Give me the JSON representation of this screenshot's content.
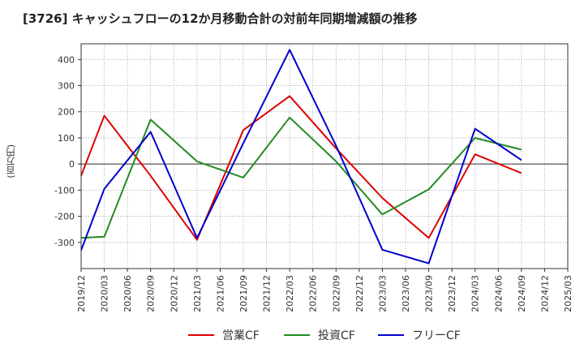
{
  "title": "[3726]  キャッシュフローの12か月移動合計の対前年同期増減額の推移",
  "unit_label": "(百万円)",
  "chart_data": {
    "type": "line",
    "title": "[3726]  キャッシュフローの12か月移動合計の対前年同期増減額の推移",
    "ylabel": "(百万円)",
    "xlabel": "",
    "ylim": [
      -400,
      460
    ],
    "yticks": [
      -300,
      -200,
      -100,
      0,
      100,
      200,
      300,
      400
    ],
    "categories": [
      "2019/12",
      "2020/03",
      "2020/06",
      "2020/09",
      "2020/12",
      "2021/03",
      "2021/06",
      "2021/09",
      "2021/12",
      "2022/03",
      "2022/06",
      "2022/09",
      "2022/12",
      "2023/03",
      "2023/06",
      "2023/09",
      "2023/12",
      "2024/03",
      "2024/06",
      "2024/09",
      "2024/12",
      "2025/03"
    ],
    "grid": true,
    "legend_position": "bottom",
    "series": [
      {
        "name": "営業CF",
        "color": "#dd0000",
        "values": [
          -45,
          185,
          null,
          -45,
          null,
          -290,
          null,
          130,
          null,
          260,
          null,
          60,
          null,
          -130,
          null,
          -283,
          null,
          37,
          null,
          -35,
          null,
          null
        ]
      },
      {
        "name": "投資CF",
        "color": "#228b22",
        "values": [
          -283,
          -278,
          null,
          170,
          null,
          10,
          null,
          -52,
          null,
          178,
          null,
          10,
          null,
          -193,
          null,
          -97,
          null,
          100,
          null,
          55,
          null,
          null
        ]
      },
      {
        "name": "フリーCF",
        "color": "#0000cc",
        "values": [
          -330,
          -95,
          null,
          123,
          null,
          -283,
          null,
          80,
          null,
          437,
          null,
          70,
          null,
          -328,
          null,
          -380,
          null,
          135,
          null,
          15,
          null,
          null
        ]
      }
    ]
  }
}
